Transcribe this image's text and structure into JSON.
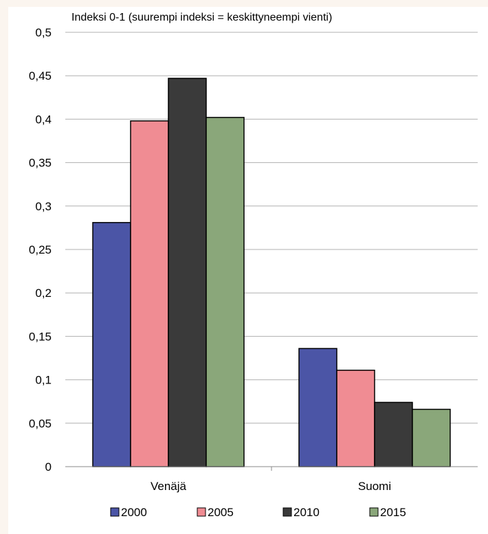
{
  "chart_data": {
    "type": "bar",
    "title": "Indeksi 0-1 (suurempi indeksi = keskittyneempi vienti)",
    "xlabel": "",
    "ylabel": "",
    "categories": [
      "Venäjä",
      "Suomi"
    ],
    "series": [
      {
        "name": "2000",
        "values": [
          0.281,
          0.136
        ],
        "color": "#4b55a6"
      },
      {
        "name": "2005",
        "values": [
          0.398,
          0.111
        ],
        "color": "#f08c93"
      },
      {
        "name": "2010",
        "values": [
          0.447,
          0.074
        ],
        "color": "#3a3a3a"
      },
      {
        "name": "2015",
        "values": [
          0.402,
          0.066
        ],
        "color": "#8aa77a"
      }
    ],
    "ylim": [
      0,
      0.5
    ],
    "yticks": [
      "0",
      "0,05",
      "0,1",
      "0,15",
      "0,2",
      "0,25",
      "0,3",
      "0,35",
      "0,4",
      "0,45",
      "0,5"
    ],
    "grid": true,
    "legend": "bottom"
  },
  "colors": {
    "background": "#fbf5ef",
    "plot_background": "#ffffff",
    "gridline": "#b0b0b0"
  }
}
